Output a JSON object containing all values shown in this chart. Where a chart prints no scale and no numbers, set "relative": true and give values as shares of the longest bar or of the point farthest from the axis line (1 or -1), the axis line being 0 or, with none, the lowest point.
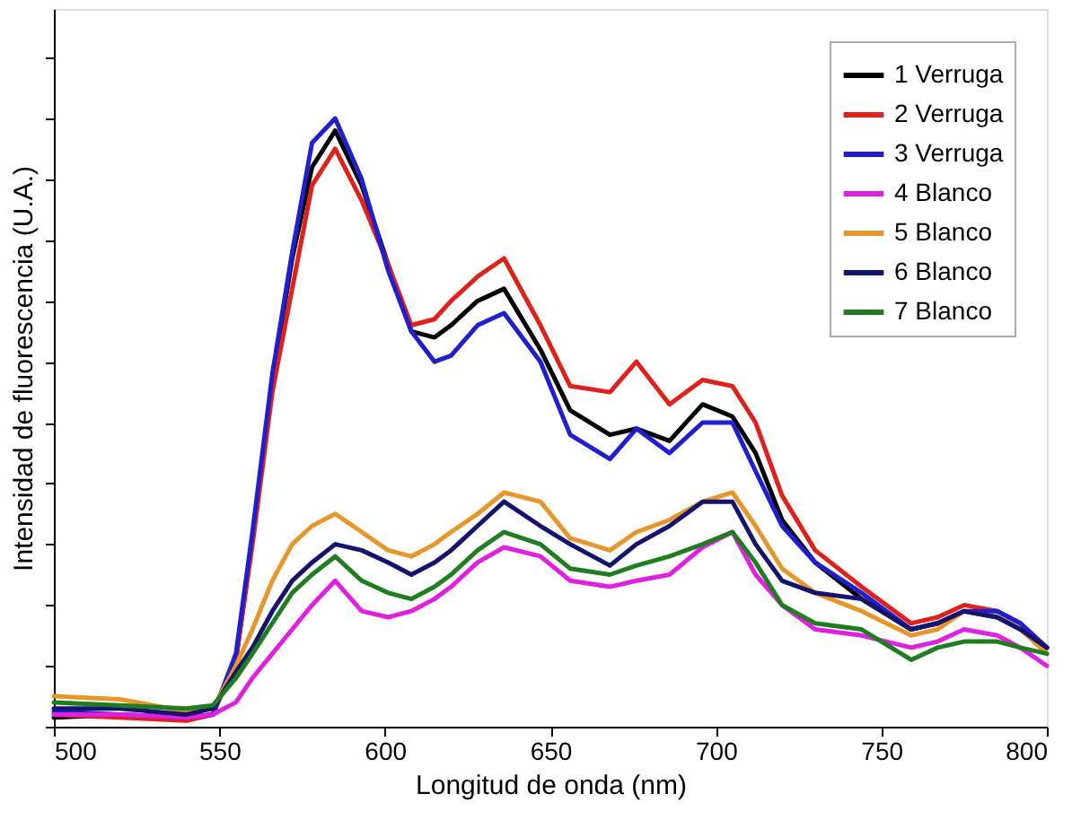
{
  "chart_data": {
    "type": "line",
    "relative": true,
    "xlabel": "Longitud de onda (nm)",
    "ylabel": "Intensidad de fluorescencia (U.A.)",
    "xlim": [
      500,
      800
    ],
    "xticks": [
      500,
      550,
      600,
      650,
      700,
      750,
      800
    ],
    "legend": "top right",
    "grid": false,
    "line_style": "solid",
    "marker": "none",
    "x": [
      500,
      520,
      540,
      548,
      555,
      560,
      566,
      572,
      578,
      585,
      593,
      601,
      608,
      615,
      620,
      628,
      636,
      647,
      656,
      668,
      676,
      686,
      696,
      705,
      712,
      720,
      730,
      744,
      759,
      767,
      775,
      785,
      792,
      800
    ],
    "series": [
      {
        "name": "1 Verruga",
        "color": "#000000",
        "values": [
          0.015,
          0.02,
          0.015,
          0.02,
          0.11,
          0.31,
          0.57,
          0.77,
          0.92,
          0.98,
          0.89,
          0.76,
          0.65,
          0.64,
          0.66,
          0.7,
          0.72,
          0.62,
          0.52,
          0.48,
          0.49,
          0.47,
          0.53,
          0.51,
          0.45,
          0.34,
          0.27,
          0.21,
          0.16,
          0.17,
          0.19,
          0.18,
          0.16,
          0.13
        ]
      },
      {
        "name": "2 Verruga",
        "color": "#e0201b",
        "values": [
          0.02,
          0.015,
          0.01,
          0.02,
          0.11,
          0.3,
          0.55,
          0.72,
          0.89,
          0.95,
          0.865,
          0.76,
          0.66,
          0.67,
          0.7,
          0.74,
          0.77,
          0.66,
          0.56,
          0.55,
          0.6,
          0.53,
          0.57,
          0.56,
          0.5,
          0.38,
          0.29,
          0.23,
          0.17,
          0.18,
          0.2,
          0.19,
          0.17,
          0.13
        ]
      },
      {
        "name": "3 Verruga",
        "color": "#1f1fd0",
        "values": [
          0.025,
          0.02,
          0.015,
          0.02,
          0.12,
          0.32,
          0.58,
          0.78,
          0.96,
          1.0,
          0.9,
          0.75,
          0.65,
          0.6,
          0.61,
          0.66,
          0.68,
          0.6,
          0.48,
          0.44,
          0.49,
          0.45,
          0.5,
          0.5,
          0.42,
          0.33,
          0.27,
          0.22,
          0.16,
          0.17,
          0.19,
          0.19,
          0.17,
          0.13
        ]
      },
      {
        "name": "4 Blanco",
        "color": "#e020e0",
        "values": [
          0.02,
          0.02,
          0.015,
          0.02,
          0.04,
          0.08,
          0.12,
          0.16,
          0.2,
          0.24,
          0.19,
          0.18,
          0.19,
          0.21,
          0.23,
          0.27,
          0.295,
          0.28,
          0.24,
          0.23,
          0.24,
          0.25,
          0.295,
          0.32,
          0.25,
          0.2,
          0.16,
          0.15,
          0.13,
          0.14,
          0.16,
          0.15,
          0.13,
          0.1
        ]
      },
      {
        "name": "5 Blanco",
        "color": "#e8962a",
        "values": [
          0.05,
          0.045,
          0.025,
          0.03,
          0.1,
          0.16,
          0.24,
          0.3,
          0.33,
          0.35,
          0.32,
          0.29,
          0.28,
          0.3,
          0.32,
          0.35,
          0.385,
          0.37,
          0.31,
          0.29,
          0.32,
          0.34,
          0.37,
          0.385,
          0.33,
          0.26,
          0.22,
          0.19,
          0.15,
          0.16,
          0.19,
          0.18,
          0.16,
          0.12
        ]
      },
      {
        "name": "6 Blanco",
        "color": "#14146e",
        "values": [
          0.03,
          0.03,
          0.02,
          0.03,
          0.09,
          0.13,
          0.19,
          0.24,
          0.27,
          0.3,
          0.29,
          0.27,
          0.25,
          0.27,
          0.29,
          0.33,
          0.37,
          0.33,
          0.3,
          0.265,
          0.3,
          0.33,
          0.37,
          0.37,
          0.3,
          0.24,
          0.22,
          0.21,
          0.16,
          0.17,
          0.19,
          0.18,
          0.16,
          0.13
        ]
      },
      {
        "name": "7 Blanco",
        "color": "#1e7d1e",
        "values": [
          0.04,
          0.035,
          0.03,
          0.035,
          0.08,
          0.12,
          0.17,
          0.22,
          0.25,
          0.28,
          0.24,
          0.22,
          0.21,
          0.23,
          0.25,
          0.29,
          0.32,
          0.3,
          0.26,
          0.25,
          0.265,
          0.28,
          0.3,
          0.32,
          0.27,
          0.2,
          0.17,
          0.16,
          0.11,
          0.13,
          0.14,
          0.14,
          0.13,
          0.12
        ]
      }
    ]
  }
}
